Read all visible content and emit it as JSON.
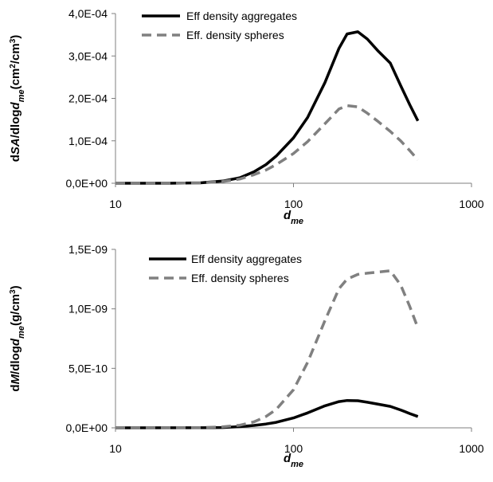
{
  "chart_data": [
    {
      "type": "line",
      "xscale": "log",
      "xlim": [
        10,
        1000
      ],
      "ylim": [
        0,
        0.0004
      ],
      "xticks": [
        10,
        100,
        1000
      ],
      "xtick_labels": [
        "10",
        "100",
        "1000"
      ],
      "yticks": [
        0,
        0.0001,
        0.0002,
        0.0003,
        0.0004
      ],
      "ytick_labels": [
        "0,0E+00",
        "1,0E-04",
        "2,0E-04",
        "3,0E-04",
        "4,0E-04"
      ],
      "xlabel": {
        "main": "d",
        "sub": "me"
      },
      "ylabel": {
        "parts": [
          "d",
          "SA",
          "/dlog",
          "d",
          "me",
          "(cm",
          "2",
          "/cm",
          "3",
          ")"
        ]
      },
      "legend_position": "top-left",
      "series": [
        {
          "name": "Eff density aggregates",
          "color": "#000000",
          "dash": "solid",
          "x": [
            10,
            20,
            30,
            40,
            50,
            60,
            70,
            80,
            100,
            120,
            150,
            180,
            200,
            230,
            260,
            300,
            350,
            400,
            450,
            500
          ],
          "y": [
            0,
            0,
            1e-06,
            5e-06,
            1.3e-05,
            2.7e-05,
            4.4e-05,
            6.4e-05,
            0.000107,
            0.000155,
            0.000237,
            0.000318,
            0.000352,
            0.000357,
            0.00034,
            0.000311,
            0.000283,
            0.00023,
            0.000185,
            0.000147
          ]
        },
        {
          "name": "Eff. density spheres",
          "color": "#808080",
          "dash": "dashed",
          "x": [
            10,
            20,
            30,
            40,
            50,
            60,
            70,
            80,
            100,
            120,
            150,
            180,
            200,
            230,
            260,
            300,
            350,
            400,
            450,
            500
          ],
          "y": [
            0,
            0,
            1e-06,
            4e-06,
            1e-05,
            2e-05,
            3.1e-05,
            4.4e-05,
            7e-05,
            9.8e-05,
            0.00014,
            0.000175,
            0.000183,
            0.00018,
            0.000165,
            0.000145,
            0.000122,
            0.0001,
            7.7e-05,
            5.5e-05
          ]
        }
      ]
    },
    {
      "type": "line",
      "xscale": "log",
      "xlim": [
        10,
        1000
      ],
      "ylim": [
        0,
        1.5e-09
      ],
      "xticks": [
        10,
        100,
        1000
      ],
      "xtick_labels": [
        "10",
        "100",
        "1000"
      ],
      "yticks": [
        0,
        5e-10,
        1e-09,
        1.5e-09
      ],
      "ytick_labels": [
        "0,0E+00",
        "5,0E-10",
        "1,0E-09",
        "1,5E-09"
      ],
      "xlabel": {
        "main": "d",
        "sub": "me"
      },
      "ylabel": {
        "parts": [
          "d",
          "M",
          "/dlog",
          "d",
          "me",
          "(g/cm",
          "3",
          ")"
        ]
      },
      "legend_position": "top-left",
      "series": [
        {
          "name": "Eff density aggregates",
          "color": "#000000",
          "dash": "solid",
          "x": [
            10,
            30,
            40,
            50,
            60,
            70,
            80,
            100,
            120,
            150,
            180,
            200,
            230,
            260,
            300,
            350,
            400,
            450,
            500
          ],
          "y": [
            0,
            1e-12,
            3e-12,
            1e-11,
            2e-11,
            3.2e-11,
            4.6e-11,
            8.3e-11,
            1.25e-10,
            1.85e-10,
            2.2e-10,
            2.3e-10,
            2.28e-10,
            2.15e-10,
            1.98e-10,
            1.8e-10,
            1.5e-10,
            1.2e-10,
            9.5e-11
          ]
        },
        {
          "name": "Eff. density spheres",
          "color": "#808080",
          "dash": "dashed",
          "x": [
            10,
            30,
            40,
            50,
            60,
            70,
            80,
            100,
            120,
            150,
            180,
            200,
            230,
            260,
            300,
            350,
            400,
            450,
            500
          ],
          "y": [
            0,
            2e-12,
            8e-12,
            2.2e-11,
            5e-11,
            9.5e-11,
            1.55e-10,
            3.2e-10,
            5.5e-10,
            9e-10,
            1.17e-09,
            1.25e-09,
            1.29e-09,
            1.3e-09,
            1.31e-09,
            1.32e-09,
            1.2e-09,
            1.02e-09,
            8.4e-10
          ]
        }
      ]
    }
  ]
}
